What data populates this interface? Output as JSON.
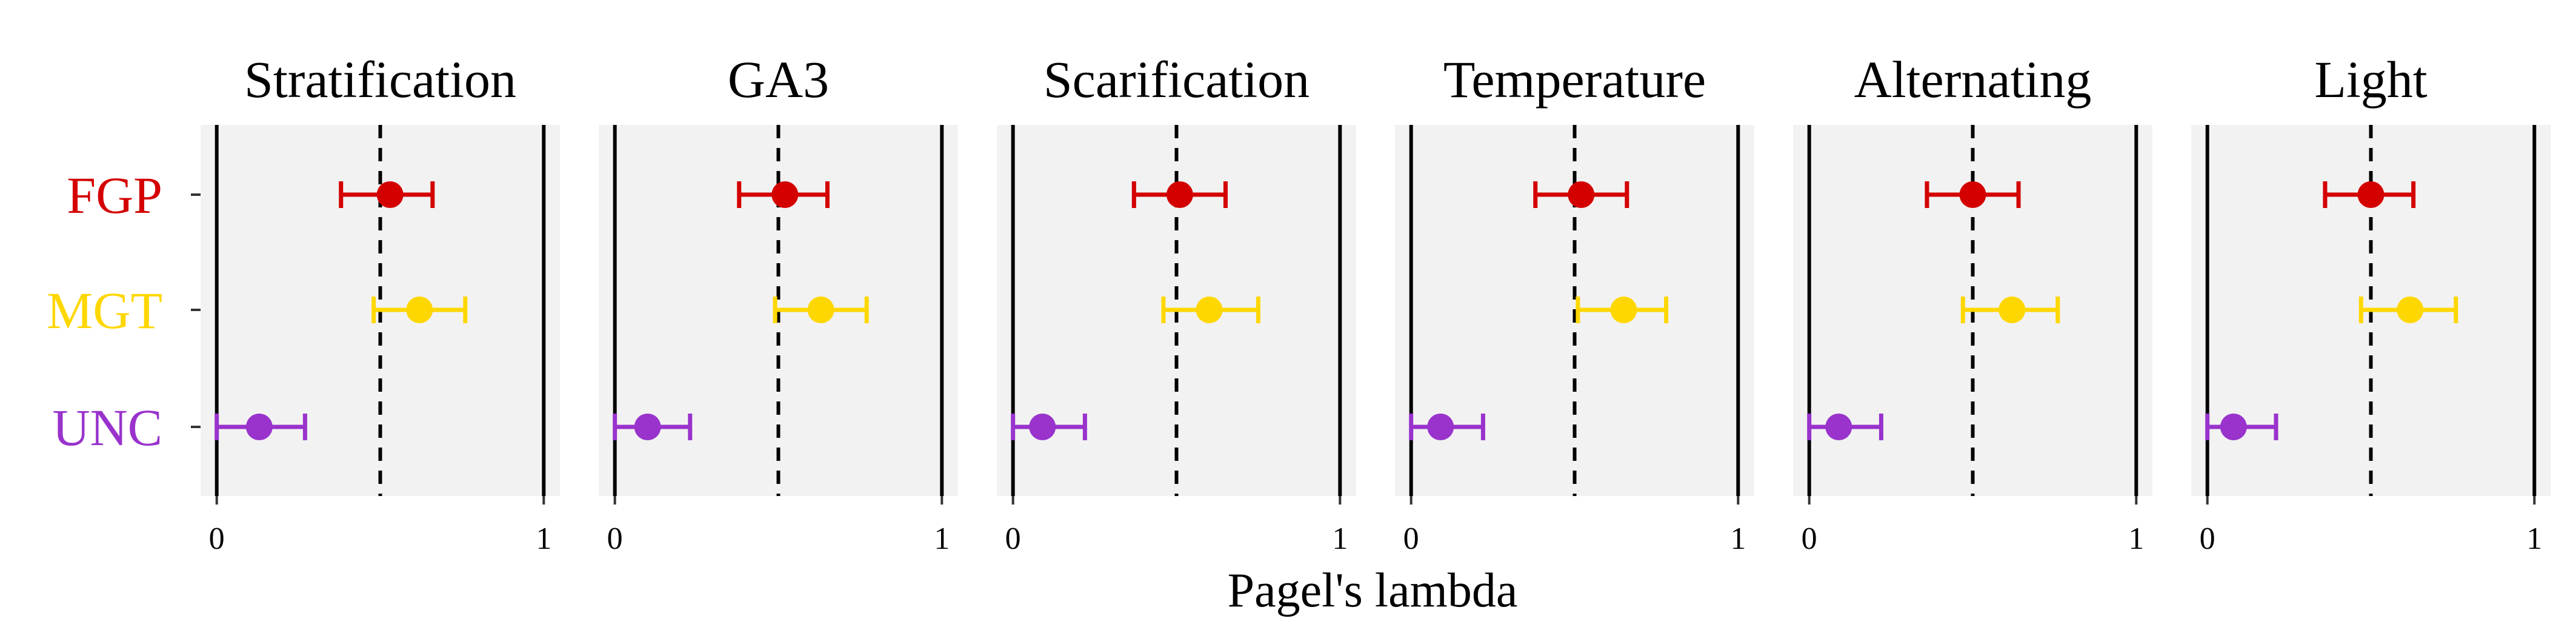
{
  "chart_data": {
    "type": "errorbar-facets",
    "xlabel": "Pagel's lambda",
    "xlim": [
      0,
      1
    ],
    "x_ticks": [
      "0",
      "1"
    ],
    "reference_lines": {
      "solid": [
        0,
        1
      ],
      "dashed": 0.5
    },
    "categories": [
      "FGP",
      "MGT",
      "UNC"
    ],
    "category_colors": {
      "FGP": "#d40000",
      "MGT": "#ffd700",
      "UNC": "#9933cc"
    },
    "panel_background": "#f2f2f2",
    "grid": false,
    "facets": [
      {
        "title": "Stratification",
        "points": [
          {
            "category": "FGP",
            "value": 0.53,
            "low": 0.38,
            "high": 0.66
          },
          {
            "category": "MGT",
            "value": 0.62,
            "low": 0.48,
            "high": 0.76
          },
          {
            "category": "UNC",
            "value": 0.13,
            "low": 0.0,
            "high": 0.27
          }
        ]
      },
      {
        "title": "GA3",
        "points": [
          {
            "category": "FGP",
            "value": 0.52,
            "low": 0.38,
            "high": 0.65
          },
          {
            "category": "MGT",
            "value": 0.63,
            "low": 0.49,
            "high": 0.77
          },
          {
            "category": "UNC",
            "value": 0.1,
            "low": 0.0,
            "high": 0.23
          }
        ]
      },
      {
        "title": "Scarification",
        "points": [
          {
            "category": "FGP",
            "value": 0.51,
            "low": 0.37,
            "high": 0.65
          },
          {
            "category": "MGT",
            "value": 0.6,
            "low": 0.46,
            "high": 0.75
          },
          {
            "category": "UNC",
            "value": 0.09,
            "low": 0.0,
            "high": 0.22
          }
        ]
      },
      {
        "title": "Temperature",
        "points": [
          {
            "category": "FGP",
            "value": 0.52,
            "low": 0.38,
            "high": 0.66
          },
          {
            "category": "MGT",
            "value": 0.65,
            "low": 0.51,
            "high": 0.78
          },
          {
            "category": "UNC",
            "value": 0.09,
            "low": 0.0,
            "high": 0.22
          }
        ]
      },
      {
        "title": "Alternating",
        "points": [
          {
            "category": "FGP",
            "value": 0.5,
            "low": 0.36,
            "high": 0.64
          },
          {
            "category": "MGT",
            "value": 0.62,
            "low": 0.47,
            "high": 0.76
          },
          {
            "category": "UNC",
            "value": 0.09,
            "low": 0.0,
            "high": 0.22
          }
        ]
      },
      {
        "title": "Light",
        "points": [
          {
            "category": "FGP",
            "value": 0.5,
            "low": 0.36,
            "high": 0.63
          },
          {
            "category": "MGT",
            "value": 0.62,
            "low": 0.47,
            "high": 0.76
          },
          {
            "category": "UNC",
            "value": 0.08,
            "low": 0.0,
            "high": 0.21
          }
        ]
      }
    ]
  }
}
